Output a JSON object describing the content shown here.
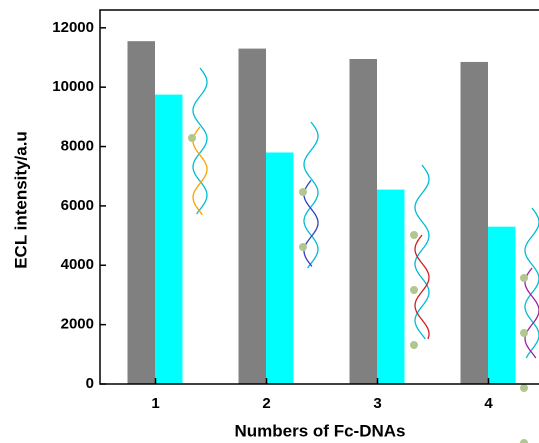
{
  "chart_data": {
    "type": "bar",
    "x_label": "Numbers of Fc-DNAs",
    "y_label": "ECL intensity/a.u",
    "categories": [
      "1",
      "2",
      "3",
      "4"
    ],
    "series": [
      {
        "color": "#808080",
        "values": [
          11550,
          11300,
          10950,
          10850
        ]
      },
      {
        "color": "#00ffff",
        "values": [
          9750,
          7800,
          6550,
          5300
        ]
      }
    ],
    "ylim": [
      0,
      12600
    ],
    "yticks": [
      0,
      2000,
      4000,
      6000,
      8000,
      10000,
      12000
    ],
    "grid": false
  }
}
